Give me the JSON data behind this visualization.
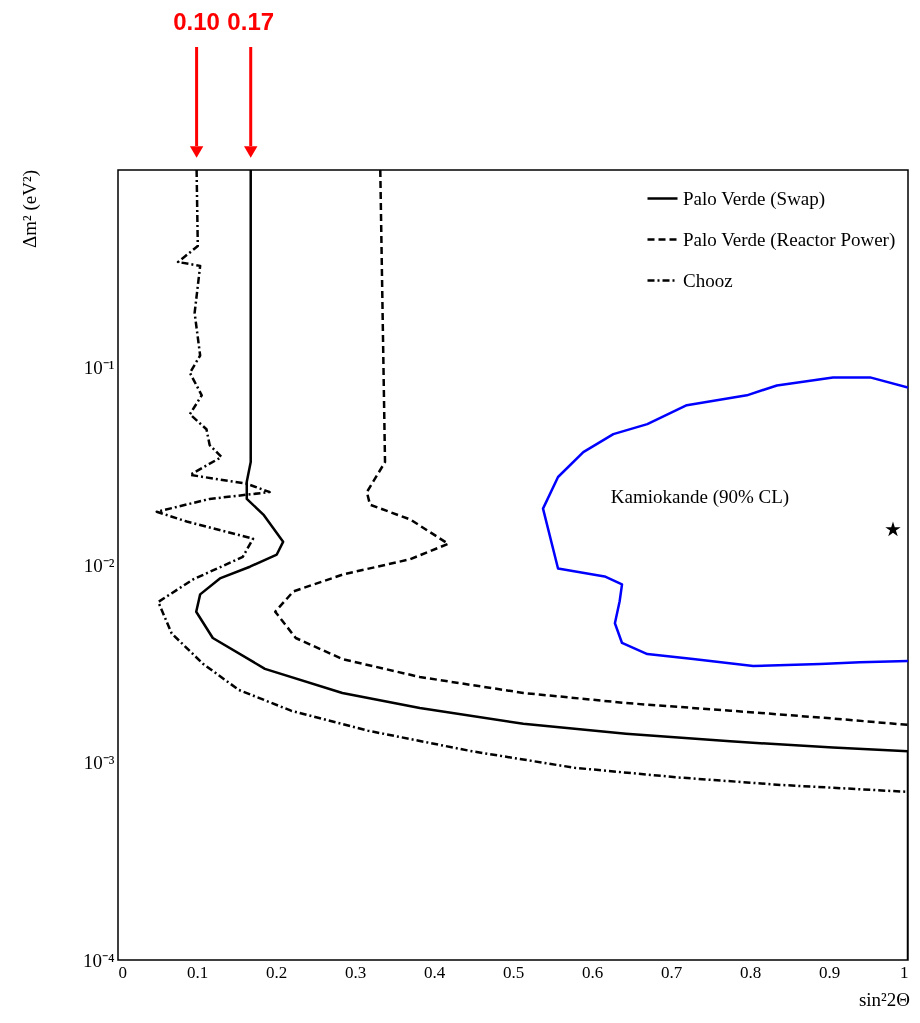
{
  "chart_data": {
    "type": "line",
    "log": "y",
    "grid": false,
    "legend": "top right",
    "xlabel": "sin²2Θ",
    "ylabel": "Δm² (eV²)",
    "xlim": [
      0,
      1
    ],
    "ylim": [
      0.0001,
      1
    ],
    "xticks": [
      0,
      0.1,
      0.2,
      0.3,
      0.4,
      0.5,
      0.6,
      0.7,
      0.8,
      0.9,
      1
    ],
    "yticks": [
      {
        "value": 0.0001,
        "label": "10⁻⁴"
      },
      {
        "value": 0.001,
        "label": "10⁻³"
      },
      {
        "value": 0.01,
        "label": "10⁻²"
      },
      {
        "value": 0.1,
        "label": "10⁻¹"
      }
    ],
    "series": [
      {
        "name": "Palo Verde (Swap)",
        "type": "line",
        "color": "#000000",
        "line_style": "solid",
        "x": [
          0.168,
          0.168,
          0.163,
          0.163,
          0.184,
          0.209,
          0.201,
          0.167,
          0.129,
          0.104,
          0.099,
          0.12,
          0.186,
          0.284,
          0.382,
          0.513,
          0.643,
          0.775,
          0.905,
          1.0,
          1.0
        ],
        "values": [
          1,
          0.0332,
          0.0264,
          0.0216,
          0.018,
          0.0131,
          0.0113,
          0.0098,
          0.00855,
          0.0071,
          0.0058,
          0.00427,
          0.00298,
          0.00225,
          0.00189,
          0.00157,
          0.0014,
          0.00128,
          0.00119,
          0.00114,
          0.0001
        ]
      },
      {
        "name": "Palo Verde (Reactor Power)",
        "type": "line",
        "color": "#000000",
        "line_style": "dashed",
        "x": [
          0.332,
          0.338,
          0.315,
          0.319,
          0.37,
          0.418,
          0.37,
          0.285,
          0.222,
          0.199,
          0.225,
          0.284,
          0.382,
          0.513,
          0.643,
          0.775,
          0.905,
          1.0
        ],
        "values": [
          1,
          0.0332,
          0.0234,
          0.0202,
          0.017,
          0.0128,
          0.0107,
          0.00896,
          0.00735,
          0.0058,
          0.00427,
          0.00334,
          0.00271,
          0.00225,
          0.002,
          0.00183,
          0.00167,
          0.00155
        ]
      },
      {
        "name": "Chooz",
        "type": "line",
        "color": "#000000",
        "line_style": "dotted",
        "x": [
          0.0995,
          0.101,
          0.076,
          0.104,
          0.097,
          0.104,
          0.091,
          0.106,
          0.091,
          0.112,
          0.116,
          0.131,
          0.091,
          0.163,
          0.192,
          0.116,
          0.049,
          0.087,
          0.171,
          0.158,
          0.095,
          0.051,
          0.068,
          0.108,
          0.153,
          0.219,
          0.316,
          0.448,
          0.578,
          0.709,
          0.839,
          1.0
        ],
        "values": [
          1,
          0.412,
          0.342,
          0.327,
          0.189,
          0.115,
          0.094,
          0.0723,
          0.058,
          0.0487,
          0.0405,
          0.0352,
          0.0286,
          0.0258,
          0.0234,
          0.0216,
          0.0186,
          0.0166,
          0.0136,
          0.011,
          0.00845,
          0.0065,
          0.0045,
          0.00315,
          0.00233,
          0.00183,
          0.00145,
          0.00114,
          0.00094,
          0.00084,
          0.00077,
          0.00071
        ]
      },
      {
        "type": "line",
        "color": "#0000ff",
        "line_style": "solid",
        "x": [
          1.0,
          0.952,
          0.905,
          0.834,
          0.796,
          0.72,
          0.67,
          0.627,
          0.589,
          0.557,
          0.538,
          0.557,
          0.616,
          0.638,
          0.635,
          0.629,
          0.638,
          0.67,
          0.728,
          0.804,
          0.889,
          0.939,
          1.0
        ],
        "values": [
          0.0792,
          0.0891,
          0.0891,
          0.0811,
          0.0723,
          0.0644,
          0.0517,
          0.046,
          0.0373,
          0.0279,
          0.0193,
          0.0096,
          0.00875,
          0.00798,
          0.00655,
          0.00507,
          0.00403,
          0.00354,
          0.00334,
          0.00308,
          0.00315,
          0.00322,
          0.00327
        ]
      },
      {
        "type": "scatter",
        "color": "#000000",
        "marker": "star",
        "x": [
          0.981
        ],
        "values": [
          0.0151
        ]
      }
    ],
    "annotations": [
      "Kamiokande (90% CL)",
      "0.10",
      "0.17"
    ]
  }
}
